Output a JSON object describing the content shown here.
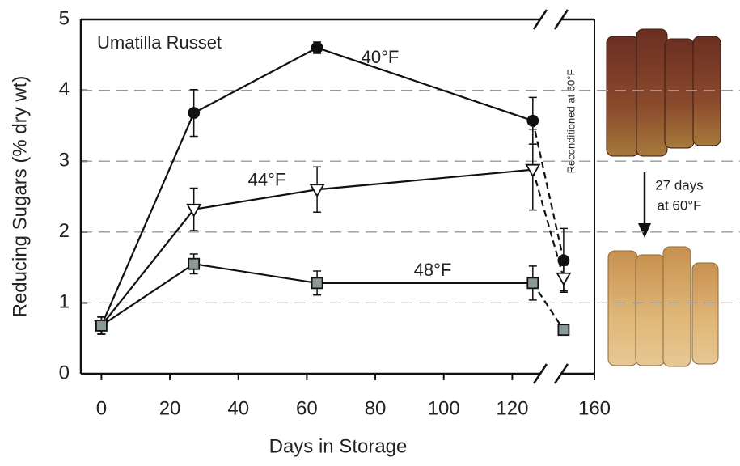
{
  "chart_data": {
    "type": "line",
    "title": "Umatilla Russet",
    "x_label": "Days in Storage",
    "y_label": "Reducing Sugars (% dry wt)",
    "x": [
      0,
      27,
      63,
      126,
      151
    ],
    "xlim": [
      -6,
      160
    ],
    "x_break": [
      131,
      147
    ],
    "xticks": [
      0,
      20,
      40,
      60,
      80,
      100,
      120,
      160
    ],
    "ylim": [
      0,
      5
    ],
    "yticks": [
      0,
      1,
      2,
      3,
      4,
      5
    ],
    "grid": true,
    "series": [
      {
        "name": "40°F",
        "color": "#111111",
        "marker": "circle",
        "values": [
          0.68,
          3.68,
          4.6,
          3.57,
          1.6
        ],
        "errors": [
          0.12,
          0.33,
          0.08,
          0.33,
          0.45
        ]
      },
      {
        "name": "44°F",
        "color": "#ffffff",
        "marker": "triangle-down",
        "values": [
          0.68,
          2.32,
          2.6,
          2.88,
          1.35
        ],
        "errors": [
          0.12,
          0.3,
          0.32,
          0.57,
          0.18
        ]
      },
      {
        "name": "48°F",
        "color": "#8a9a98",
        "marker": "square",
        "values": [
          0.68,
          1.55,
          1.28,
          1.28,
          0.62
        ],
        "errors": [
          0.12,
          0.14,
          0.17,
          0.24,
          0.06
        ]
      }
    ],
    "annotations": {
      "reconditioned": "Reconditioned at 60°F",
      "days_line1": "27 days",
      "days_line2": "at 60°F"
    }
  }
}
